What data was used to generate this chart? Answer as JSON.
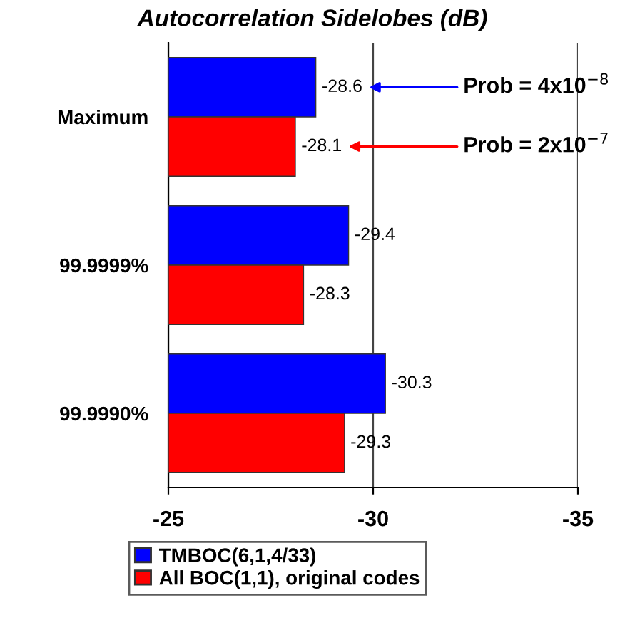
{
  "chart_data": {
    "type": "bar",
    "orientation": "horizontal",
    "title": "Autocorrelation Sidelobes (dB)",
    "categories": [
      "Maximum",
      "99.9999%",
      "99.9990%"
    ],
    "series": [
      {
        "name": "TMBOC(6,1,4/33)",
        "color": "#0000ff",
        "values": [
          -28.6,
          -29.4,
          -30.3
        ]
      },
      {
        "name": "All BOC(1,1), original codes",
        "color": "#ff0000",
        "values": [
          -28.1,
          -28.3,
          -29.3
        ]
      }
    ],
    "xlim": [
      -25,
      -35
    ],
    "xticks": [
      -25,
      -30,
      -35
    ],
    "grid": "x",
    "data_labels": true,
    "legend": "bottom",
    "annotations": [
      "Prob = 4x10$^{−8}$",
      "Prob = 2x10$^{−7}$"
    ]
  }
}
